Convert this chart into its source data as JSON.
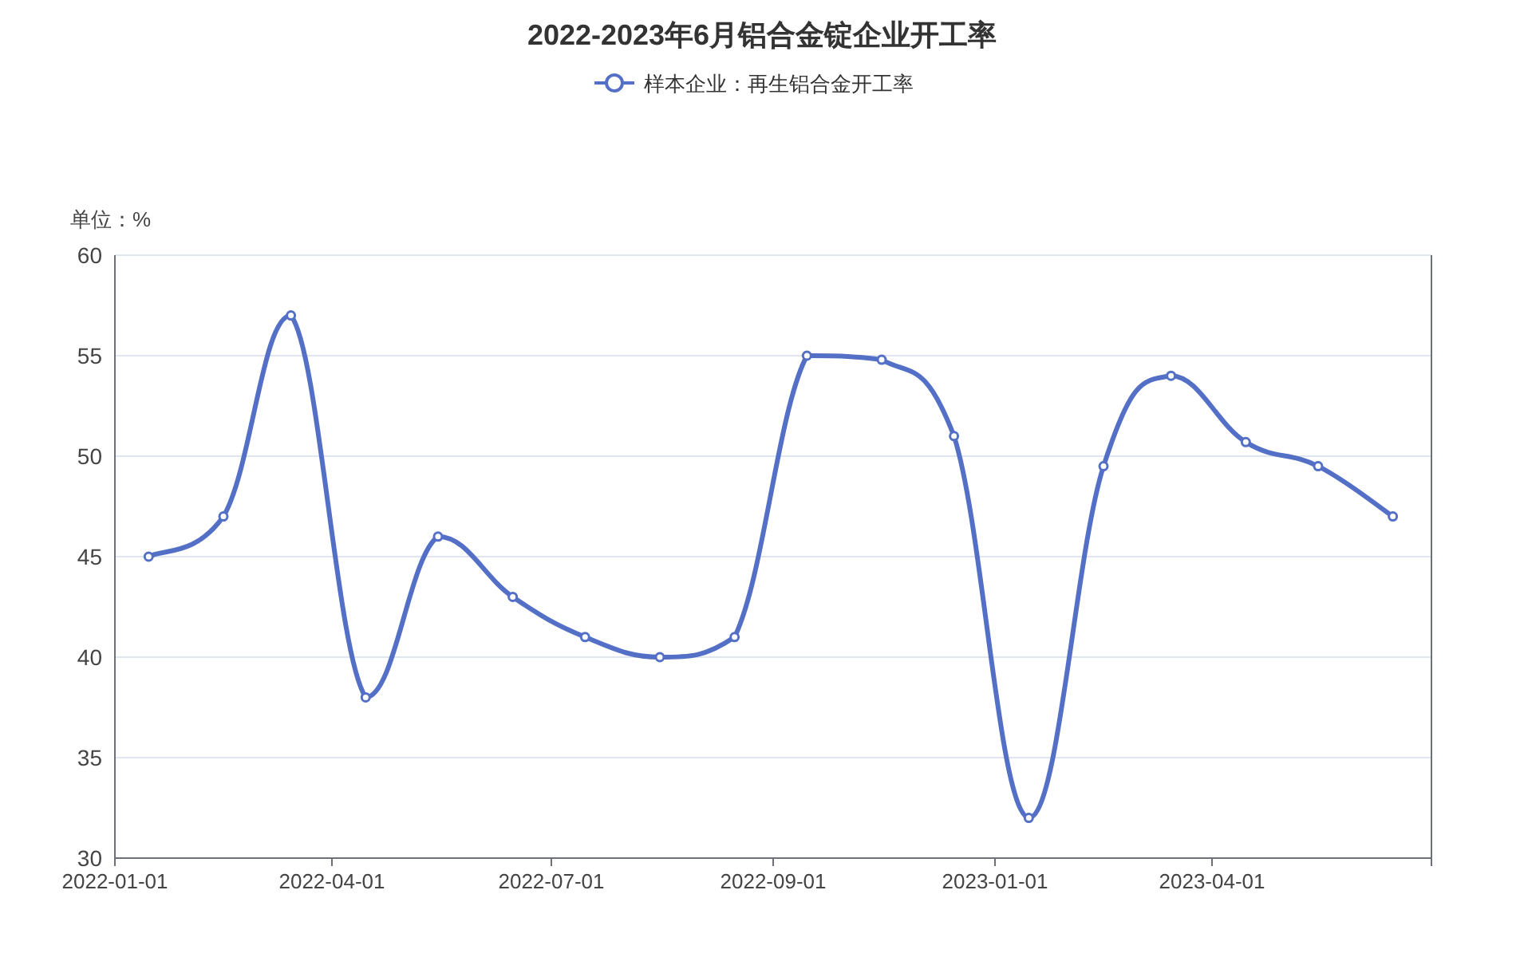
{
  "chart_data": {
    "type": "line",
    "title": "2022-2023年6月铝合金锭企业开工率",
    "ylabel": "单位：%",
    "x": [
      "2022-01-15",
      "2022-02-15",
      "2022-03-15",
      "2022-04-15",
      "2022-05-15",
      "2022-06-15",
      "2022-07-15",
      "2022-08-15",
      "2022-09-15",
      "2022-10-15",
      "2022-11-15",
      "2022-12-15",
      "2023-01-15",
      "2023-02-15",
      "2023-03-15",
      "2023-04-15",
      "2023-05-15",
      "2023-06-15"
    ],
    "series": [
      {
        "name": "样本企业：再生铝合金开工率",
        "color": "#5470c6",
        "values": [
          45,
          47,
          57,
          38,
          46,
          43,
          41,
          40,
          41,
          55,
          54.8,
          51,
          32,
          49.5,
          54,
          50.7,
          49.5,
          47
        ]
      }
    ],
    "xlim": [
      "2022-01-01",
      "2023-07-01"
    ],
    "xticks": [
      {
        "value": "2022-01-01",
        "label": "2022-01-01"
      },
      {
        "value": "2022-04-01",
        "label": "2022-04-01"
      },
      {
        "value": "2022-07-01",
        "label": "2022-07-01"
      },
      {
        "value": "2022-10-01",
        "label": "2022-09-01"
      },
      {
        "value": "2023-01-01",
        "label": "2023-01-01"
      },
      {
        "value": "2023-04-01",
        "label": "2023-04-01"
      },
      {
        "value": "2023-07-01",
        "label": null
      }
    ],
    "ylim": [
      30,
      60
    ],
    "yticks": [
      30,
      35,
      40,
      45,
      50,
      55,
      60
    ],
    "grid": "y",
    "legend": "top",
    "marker": "circle",
    "line_style": "solid"
  }
}
